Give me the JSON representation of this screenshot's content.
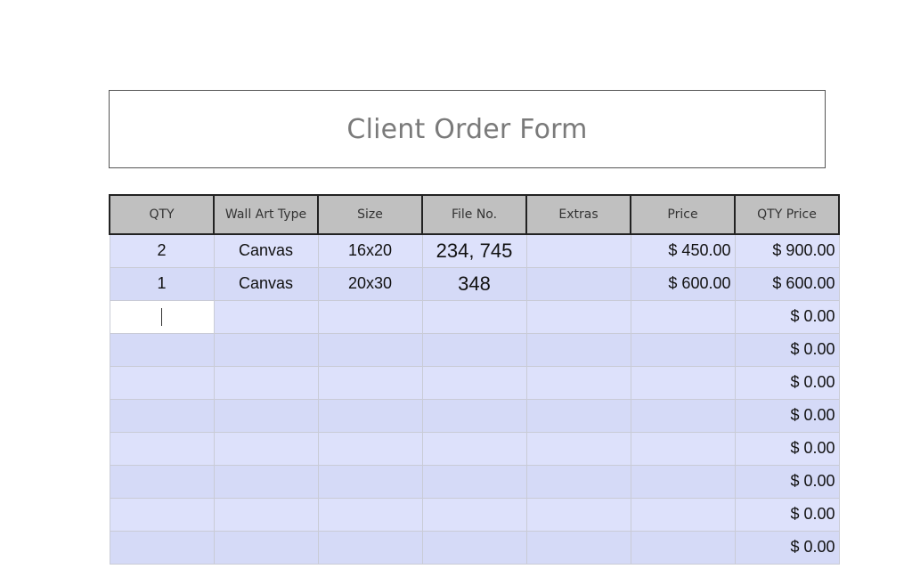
{
  "form": {
    "title": "Client Order Form"
  },
  "table": {
    "columns": [
      "QTY",
      "Wall Art Type",
      "Size",
      "File No.",
      "Extras",
      "Price",
      "QTY Price"
    ],
    "rows": [
      [
        "2",
        "Canvas",
        "16x20",
        "234, 745",
        "",
        "$ 450.00",
        "$ 900.00"
      ],
      [
        "1",
        "Canvas",
        "20x30",
        "348",
        "",
        "$ 600.00",
        "$ 600.00"
      ],
      [
        "",
        "",
        "",
        "",
        "",
        "",
        "$ 0.00"
      ],
      [
        "",
        "",
        "",
        "",
        "",
        "",
        "$ 0.00"
      ],
      [
        "",
        "",
        "",
        "",
        "",
        "",
        "$ 0.00"
      ],
      [
        "",
        "",
        "",
        "",
        "",
        "",
        "$ 0.00"
      ],
      [
        "",
        "",
        "",
        "",
        "",
        "",
        "$ 0.00"
      ],
      [
        "",
        "",
        "",
        "",
        "",
        "",
        "$ 0.00"
      ],
      [
        "",
        "",
        "",
        "",
        "",
        "",
        "$ 0.00"
      ],
      [
        "",
        "",
        "",
        "",
        "",
        "",
        "$ 0.00"
      ]
    ],
    "active_cell": {
      "row": 2,
      "col": 0
    }
  }
}
